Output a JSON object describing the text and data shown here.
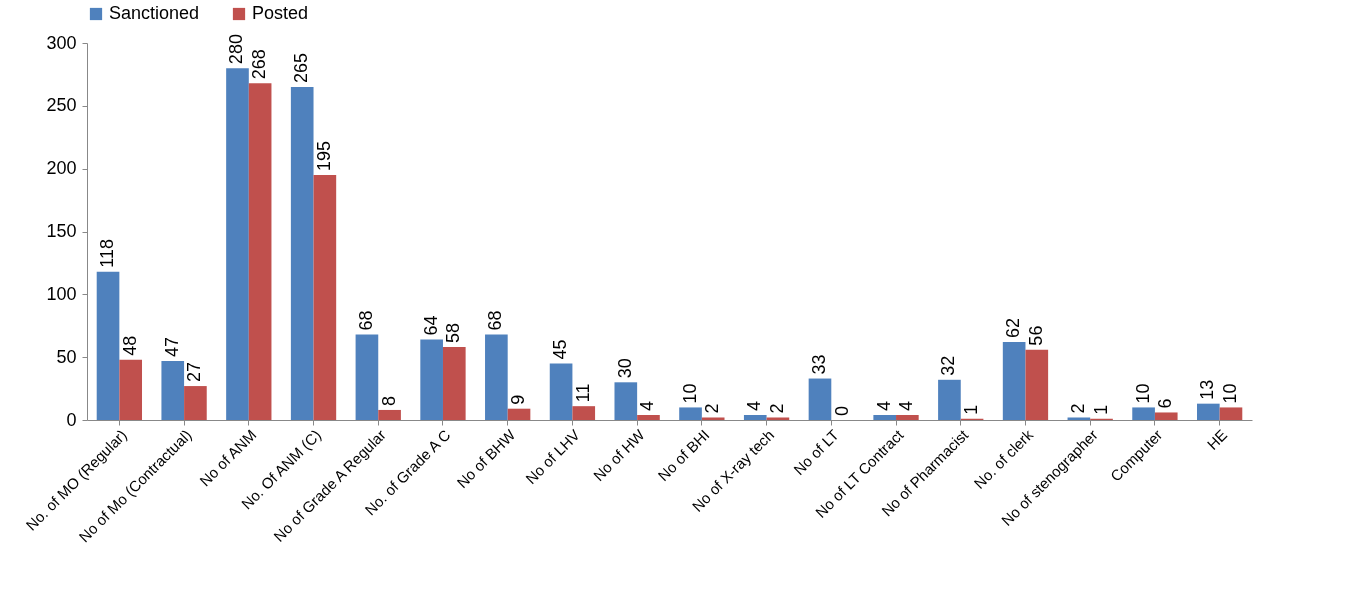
{
  "chart_data": {
    "type": "bar",
    "categories": [
      "No. of  MO (Regular)",
      "No of Mo (Contractual)",
      "No of ANM",
      "No. Of ANM (C)",
      "No of Grade A Regular",
      "No. of Grade A C",
      "No of BHW",
      "No of LHV",
      "No of HW",
      "No of BHI",
      "No of X-ray tech",
      "No of LT",
      "No of LT Contract",
      "No of Pharmacist",
      "No. of  clerk",
      "No of stenographer",
      "Computer",
      "HE"
    ],
    "series": [
      {
        "name": "Sanctioned",
        "color": "#4f81bd",
        "values": [
          118,
          47,
          280,
          265,
          68,
          64,
          68,
          45,
          30,
          10,
          4,
          33,
          4,
          32,
          62,
          2,
          10,
          13
        ]
      },
      {
        "name": "Posted",
        "color": "#c0504d",
        "values": [
          48,
          27,
          268,
          195,
          8,
          58,
          9,
          11,
          4,
          2,
          2,
          0,
          4,
          1,
          56,
          1,
          6,
          10
        ]
      }
    ],
    "ylim": [
      0,
      300
    ],
    "yticks": [
      0,
      50,
      100,
      150,
      200,
      250,
      300
    ],
    "data_labels": true,
    "legend": "top",
    "grid": false
  }
}
